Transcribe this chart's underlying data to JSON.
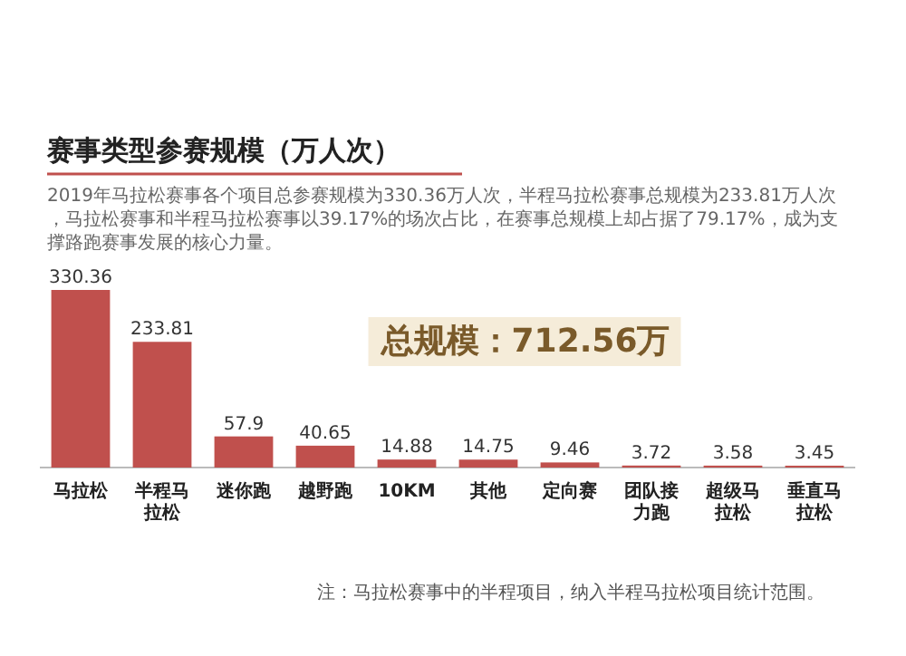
{
  "chart_data": {
    "type": "bar",
    "title": "赛事类型参赛规模（万人次）",
    "subtitle": "2019年马拉松赛事各个项目总参赛规模为330.36万人次，半程马拉松赛事总规模为233.81万人次，马拉松赛事和半程马拉松赛事以39.17%的场次占比，在赛事总规模上却占据了79.17%，成为支撑路跑赛事发展的核心力量。",
    "categories": [
      "马拉松",
      "半程马拉松",
      "迷你跑",
      "越野跑",
      "10KM",
      "其他",
      "定向赛",
      "团队接力跑",
      "超级马拉松",
      "垂直马拉松"
    ],
    "values": [
      330.36,
      233.81,
      57.9,
      40.65,
      14.88,
      14.75,
      9.46,
      3.72,
      3.58,
      3.45
    ],
    "color": "#c0504d",
    "data_labels": true,
    "annotations": [
      "总规模：712.56万",
      "注：马拉松赛事中的半程项目，纳入半程马拉松项目统计范围。"
    ]
  }
}
